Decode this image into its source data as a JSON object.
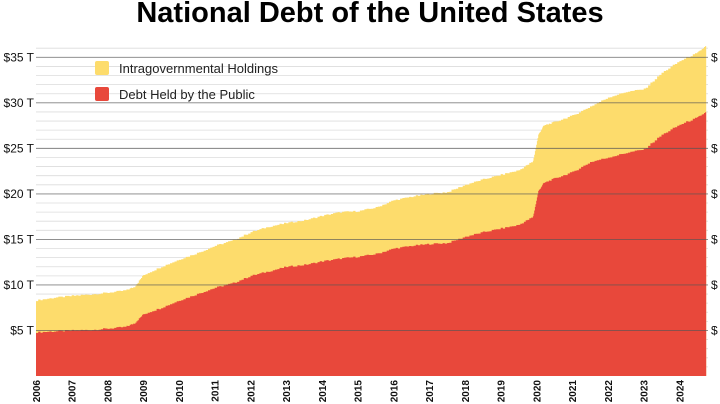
{
  "chart_data": {
    "type": "area",
    "title": "National Debt of the United States",
    "xlabel": "",
    "ylabel": "",
    "xlim": [
      2006,
      2024.8
    ],
    "ylim": [
      0,
      38
    ],
    "y_ticks": [
      {
        "value": 5,
        "label": "$5 T"
      },
      {
        "value": 10,
        "label": "$10 T"
      },
      {
        "value": 15,
        "label": "$15 T"
      },
      {
        "value": 20,
        "label": "$20 T"
      },
      {
        "value": 25,
        "label": "$25 T"
      },
      {
        "value": 30,
        "label": "$30 T"
      },
      {
        "value": 35,
        "label": "$35 T"
      }
    ],
    "right_edge_marks": [
      "$",
      "$",
      "$",
      "$",
      "$",
      "$",
      "$"
    ],
    "x_ticks": [
      "2006",
      "2007",
      "2008",
      "2009",
      "2010",
      "2011",
      "2012",
      "2013",
      "2014",
      "2015",
      "2016",
      "2017",
      "2018",
      "2019",
      "2020",
      "2021",
      "2022",
      "2023",
      "2024"
    ],
    "grid": "horizontal",
    "legend_position": "top-left",
    "stacked": true,
    "x": [
      2006.0,
      2006.5,
      2007.0,
      2007.5,
      2008.0,
      2008.5,
      2008.75,
      2009.0,
      2009.5,
      2010.0,
      2010.5,
      2011.0,
      2011.5,
      2012.0,
      2012.5,
      2013.0,
      2013.5,
      2014.0,
      2014.5,
      2015.0,
      2015.5,
      2016.0,
      2016.5,
      2017.0,
      2017.5,
      2018.0,
      2018.5,
      2019.0,
      2019.5,
      2019.9,
      2020.05,
      2020.2,
      2020.5,
      2021.0,
      2021.5,
      2022.0,
      2022.5,
      2023.0,
      2023.5,
      2024.0,
      2024.5,
      2024.75
    ],
    "series": [
      {
        "name": "Debt Held by the Public",
        "color": "#e8483b",
        "values": [
          4.8,
          4.9,
          5.0,
          5.05,
          5.2,
          5.4,
          5.8,
          6.8,
          7.5,
          8.3,
          9.0,
          9.7,
          10.2,
          11.0,
          11.5,
          12.0,
          12.2,
          12.6,
          12.9,
          13.1,
          13.4,
          14.0,
          14.3,
          14.5,
          14.6,
          15.3,
          15.8,
          16.2,
          16.6,
          17.5,
          20.3,
          21.2,
          21.7,
          22.4,
          23.5,
          24.0,
          24.5,
          24.9,
          26.5,
          27.6,
          28.4,
          29.0
        ]
      },
      {
        "name": "Intragovernmental Holdings",
        "color": "#fddc6c",
        "values": [
          3.5,
          3.7,
          3.8,
          3.9,
          3.95,
          4.0,
          4.0,
          4.3,
          4.5,
          4.5,
          4.5,
          4.6,
          4.7,
          4.8,
          4.9,
          4.8,
          4.9,
          5.0,
          5.1,
          5.0,
          5.1,
          5.3,
          5.4,
          5.5,
          5.6,
          5.7,
          5.8,
          5.9,
          6.0,
          6.1,
          6.2,
          6.3,
          6.2,
          6.2,
          6.1,
          6.6,
          6.7,
          6.6,
          6.8,
          7.0,
          7.1,
          7.3
        ]
      }
    ]
  }
}
